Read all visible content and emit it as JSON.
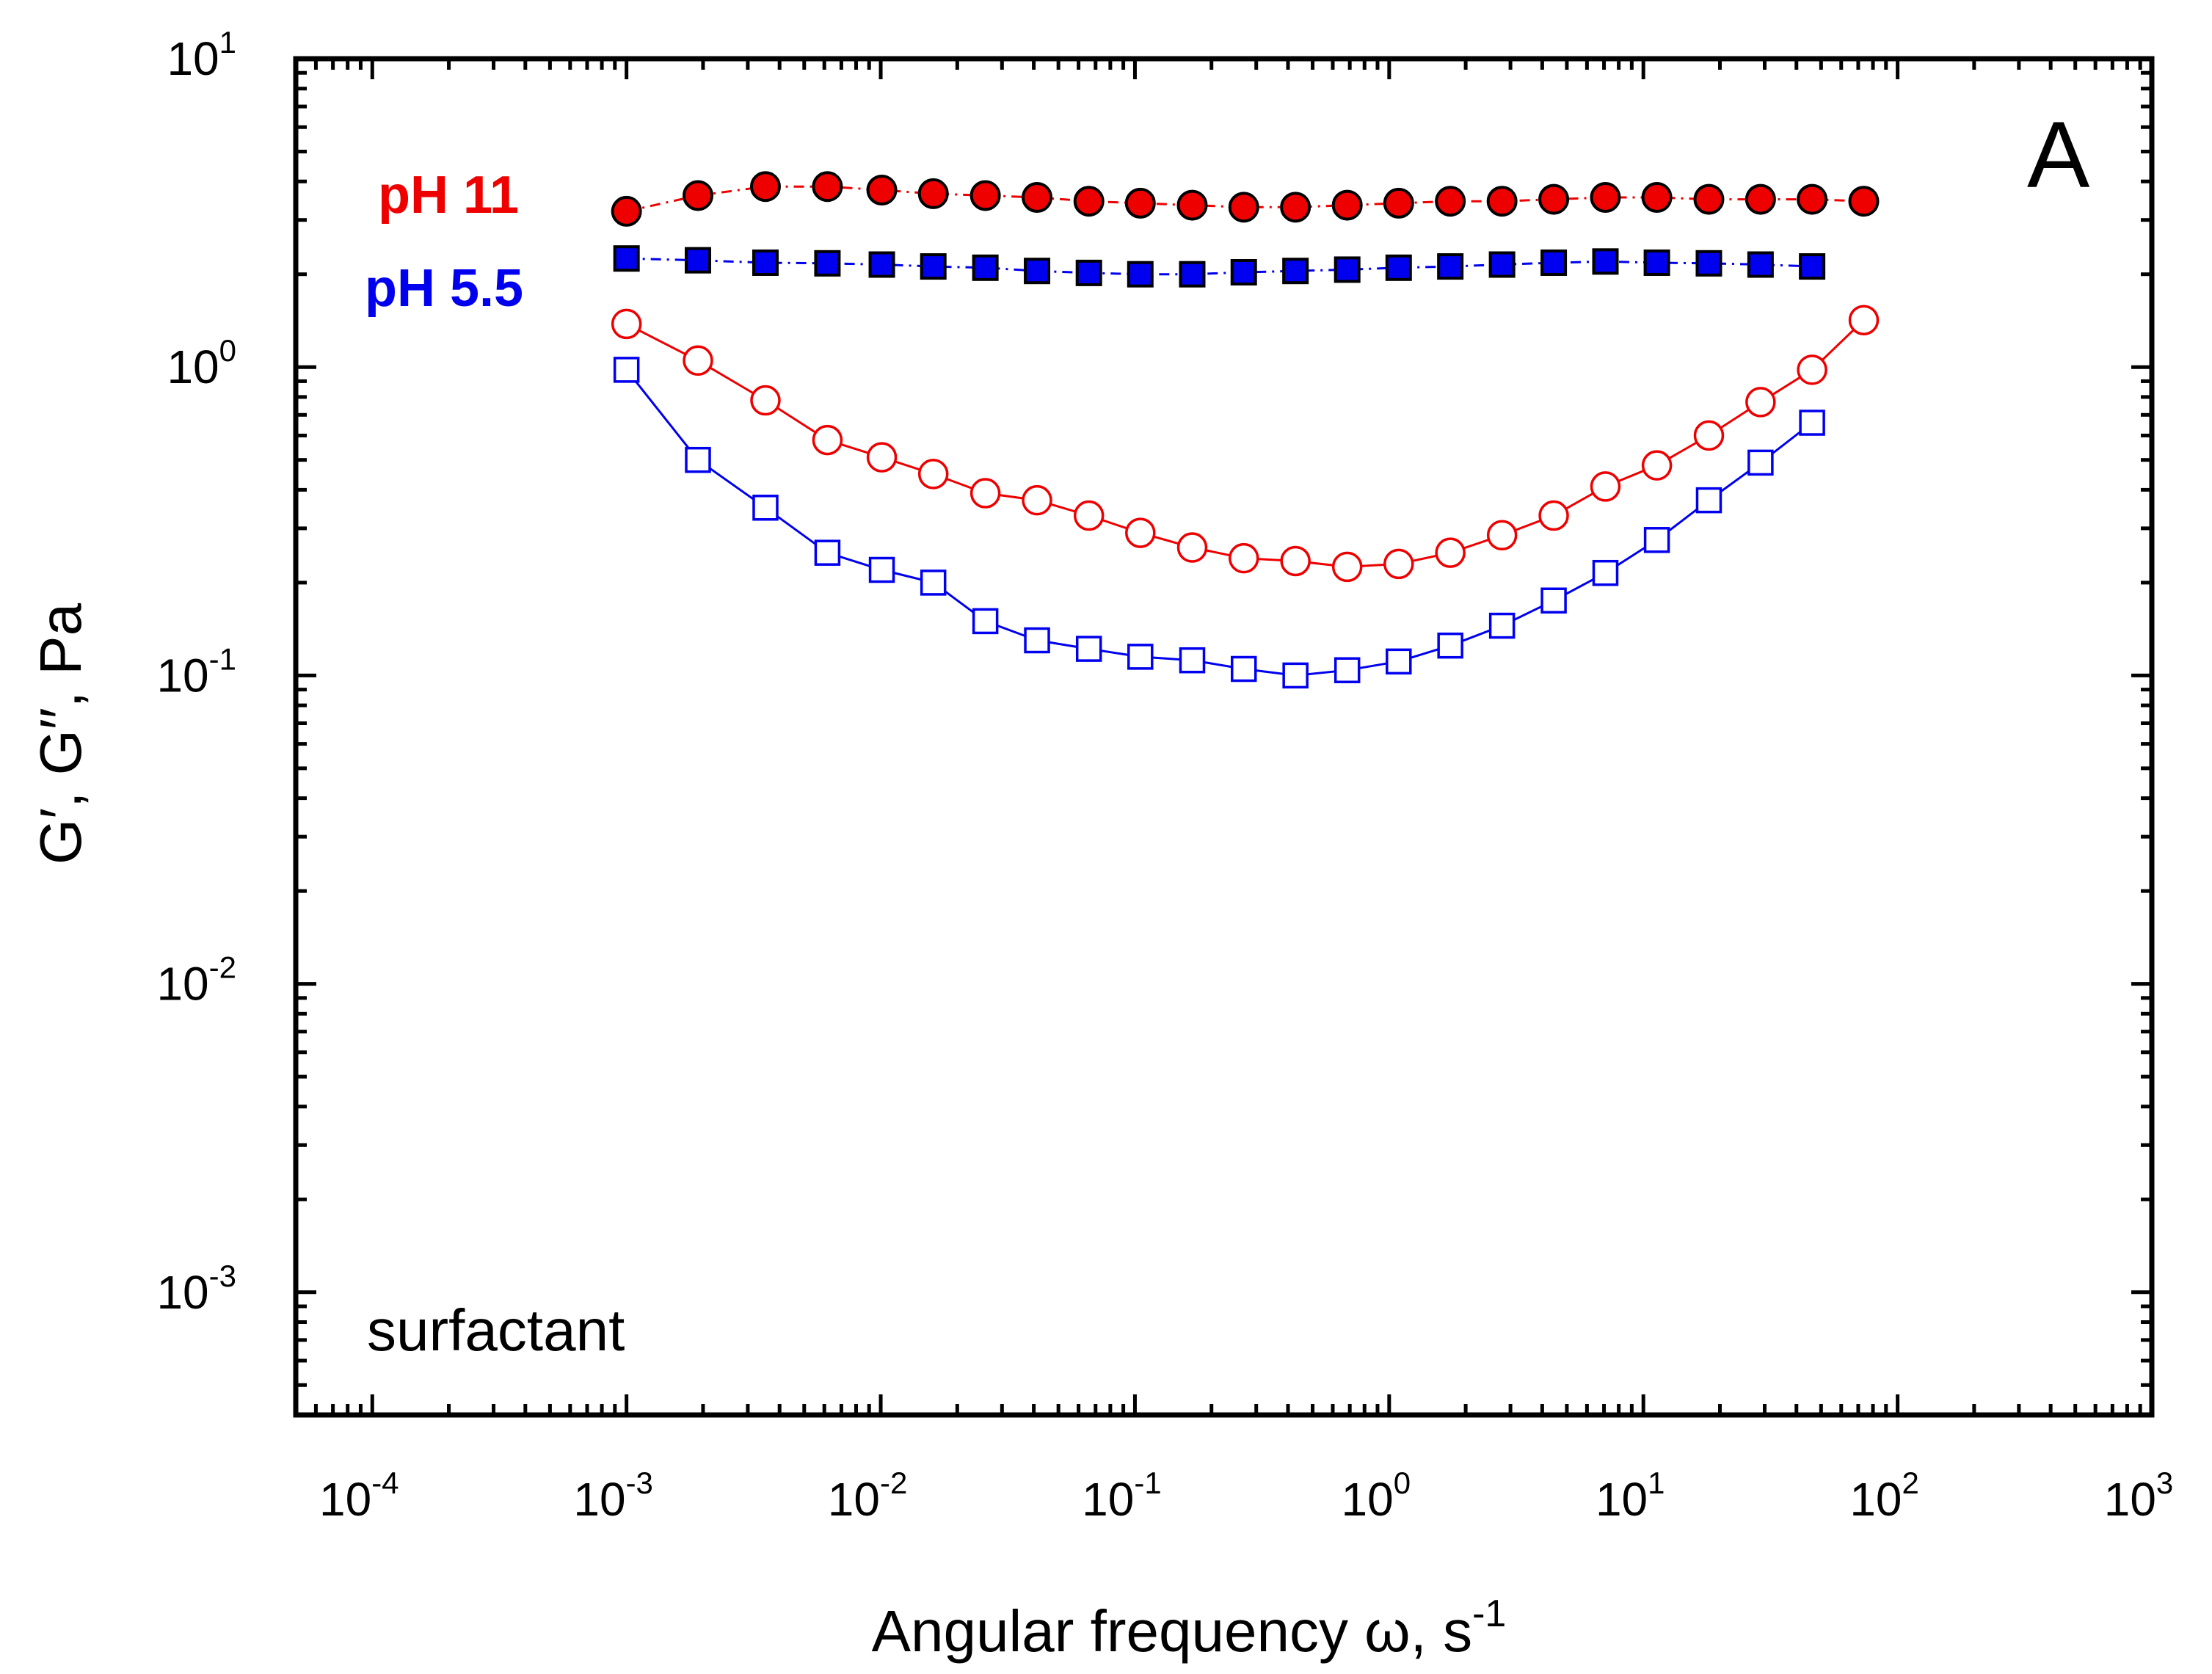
{
  "chart_data": {
    "type": "scatter",
    "panel_label": "A",
    "annotation": "surfactant",
    "x_scale": "log",
    "y_scale": "log",
    "xlim": [
      5e-05,
      1000
    ],
    "ylim": [
      0.0004,
      10
    ],
    "xlabel": "Angular frequency ω, s",
    "xlabel_sup": "-1",
    "ylabel": "G′, G′′, Pa",
    "x_ticks": [
      {
        "base": "10",
        "exp": "-4",
        "value": 0.0001
      },
      {
        "base": "10",
        "exp": "-3",
        "value": 0.001
      },
      {
        "base": "10",
        "exp": "-2",
        "value": 0.01
      },
      {
        "base": "10",
        "exp": "-1",
        "value": 0.1
      },
      {
        "base": "10",
        "exp": "0",
        "value": 1
      },
      {
        "base": "10",
        "exp": "1",
        "value": 10
      },
      {
        "base": "10",
        "exp": "2",
        "value": 100
      },
      {
        "base": "10",
        "exp": "3",
        "value": 1000
      }
    ],
    "y_ticks": [
      {
        "base": "10",
        "exp": "-3",
        "value": 0.001
      },
      {
        "base": "10",
        "exp": "-2",
        "value": 0.01
      },
      {
        "base": "10",
        "exp": "-1",
        "value": 0.1
      },
      {
        "base": "10",
        "exp": "0",
        "value": 1
      },
      {
        "base": "10",
        "exp": "1",
        "value": 10
      }
    ],
    "legend": [
      {
        "label": "pH 11",
        "color": "#ee0000"
      },
      {
        "label": "pH 5.5",
        "color": "#0000ee"
      }
    ],
    "series": [
      {
        "name": "G′ pH 11",
        "marker": "circle",
        "filled": true,
        "color": "#ee0000",
        "line": "dashdot",
        "x": [
          0.001,
          0.00191,
          0.00352,
          0.00617,
          0.0101,
          0.0161,
          0.0258,
          0.0412,
          0.0659,
          0.105,
          0.168,
          0.268,
          0.428,
          0.684,
          1.09,
          1.74,
          2.78,
          4.44,
          7.09,
          11.3,
          18.1,
          28.9,
          46.1,
          73.6
        ],
        "y": [
          3.2,
          3.6,
          3.85,
          3.85,
          3.75,
          3.65,
          3.6,
          3.55,
          3.45,
          3.4,
          3.35,
          3.3,
          3.3,
          3.35,
          3.4,
          3.45,
          3.45,
          3.5,
          3.55,
          3.55,
          3.5,
          3.5,
          3.5,
          3.45
        ]
      },
      {
        "name": "G′′ pH 11",
        "marker": "circle",
        "filled": false,
        "color": "#ee0000",
        "line": "solid",
        "x": [
          0.001,
          0.00191,
          0.00352,
          0.00617,
          0.0101,
          0.0161,
          0.0258,
          0.0412,
          0.0659,
          0.105,
          0.168,
          0.268,
          0.428,
          0.684,
          1.09,
          1.74,
          2.78,
          4.44,
          7.09,
          11.3,
          18.1,
          28.9,
          46.1,
          73.6
        ],
        "y": [
          1.38,
          1.05,
          0.78,
          0.58,
          0.51,
          0.45,
          0.39,
          0.37,
          0.33,
          0.29,
          0.26,
          0.24,
          0.235,
          0.225,
          0.23,
          0.25,
          0.285,
          0.33,
          0.41,
          0.48,
          0.6,
          0.77,
          0.98,
          1.42
        ]
      },
      {
        "name": "G′ pH 5.5",
        "marker": "square",
        "filled": true,
        "color": "#0000ee",
        "line": "dashdot",
        "x": [
          0.001,
          0.00191,
          0.00352,
          0.00617,
          0.0101,
          0.0161,
          0.0258,
          0.0412,
          0.0659,
          0.105,
          0.168,
          0.268,
          0.428,
          0.684,
          1.09,
          1.74,
          2.78,
          4.44,
          7.09,
          11.3,
          18.1,
          28.9,
          46.1
        ],
        "y": [
          2.25,
          2.22,
          2.18,
          2.17,
          2.15,
          2.12,
          2.1,
          2.05,
          2.02,
          2.0,
          2.0,
          2.03,
          2.05,
          2.07,
          2.1,
          2.12,
          2.15,
          2.18,
          2.2,
          2.18,
          2.17,
          2.15,
          2.12
        ]
      },
      {
        "name": "G′′ pH 5.5",
        "marker": "square",
        "filled": false,
        "color": "#0000ee",
        "line": "solid",
        "x": [
          0.001,
          0.00191,
          0.00352,
          0.00617,
          0.0101,
          0.0161,
          0.0258,
          0.0412,
          0.0659,
          0.105,
          0.168,
          0.268,
          0.428,
          0.684,
          1.09,
          1.74,
          2.78,
          4.44,
          7.09,
          11.3,
          18.1,
          28.9,
          46.1
        ],
        "y": [
          0.98,
          0.5,
          0.35,
          0.25,
          0.22,
          0.2,
          0.15,
          0.13,
          0.122,
          0.115,
          0.112,
          0.105,
          0.1,
          0.104,
          0.111,
          0.125,
          0.145,
          0.175,
          0.215,
          0.275,
          0.37,
          0.49,
          0.66
        ]
      }
    ]
  }
}
